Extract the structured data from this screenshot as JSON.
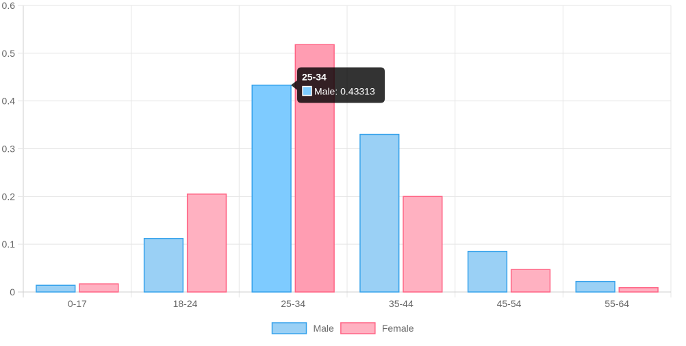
{
  "chart_data": {
    "type": "bar",
    "title": "",
    "xlabel": "",
    "ylabel": "",
    "categories": [
      "0-17",
      "18-24",
      "25-34",
      "35-44",
      "45-54",
      "55-64"
    ],
    "series": [
      {
        "name": "Male",
        "values": [
          0.014,
          0.112,
          0.43313,
          0.33,
          0.085,
          0.022
        ],
        "fill": "#9ad0f5",
        "stroke": "#36a2eb",
        "highlight_fill": "#7ecbff"
      },
      {
        "name": "Female",
        "values": [
          0.017,
          0.205,
          0.518,
          0.2,
          0.047,
          0.009
        ],
        "fill": "#ffb1c1",
        "stroke": "#ff6384",
        "highlight_fill": "#ff9db2"
      }
    ],
    "ylim": [
      0,
      0.6
    ],
    "y_ticks": [
      "0",
      "0.1",
      "0.2",
      "0.3",
      "0.4",
      "0.5",
      "0.6"
    ],
    "grid": true,
    "legend_position": "bottom",
    "highlight_category_index": 2,
    "tooltip": {
      "title": "25-34",
      "label": "Male: 0.43313",
      "series_index": 0,
      "category_index": 2
    }
  }
}
